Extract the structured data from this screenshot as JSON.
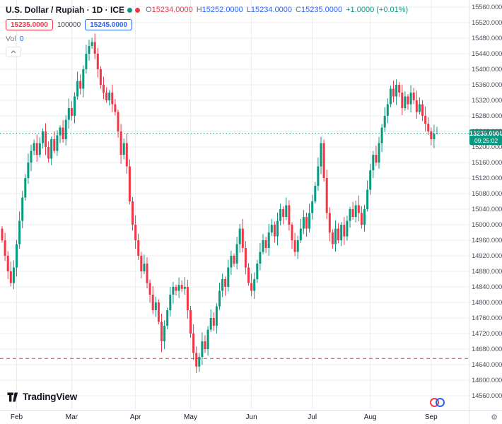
{
  "header": {
    "symbol_title": "U.S. Dollar / Rupiah · 1D · ICE",
    "ohlc": {
      "o_label": "O",
      "o_value": "15234.0000",
      "h_label": "H",
      "h_value": "15252.0000",
      "l_label": "L",
      "l_value": "15234.0000",
      "c_label": "C",
      "c_value": "15235.0000",
      "change": "+1.0000 (+0.01%)"
    },
    "order_buttons": {
      "sell_price": "15235.0000",
      "quantity": "100000",
      "buy_price": "15245.0000"
    },
    "volume": {
      "label": "Vol",
      "value": "0"
    }
  },
  "chart_data": {
    "type": "candlestick",
    "title": "U.S. Dollar / Rupiah",
    "symbol": "USD/IDR",
    "interval": "1D",
    "exchange": "ICE",
    "y_axis": {
      "min": 14560,
      "max": 15560,
      "step": 40,
      "decimals": 4
    },
    "x_axis": {
      "month_ticks": [
        {
          "label": "Feb",
          "index": 5
        },
        {
          "label": "Mar",
          "index": 24
        },
        {
          "label": "Apr",
          "index": 46
        },
        {
          "label": "May",
          "index": 65
        },
        {
          "label": "Jun",
          "index": 86
        },
        {
          "label": "Jul",
          "index": 107
        },
        {
          "label": "Aug",
          "index": 127
        },
        {
          "label": "Sep",
          "index": 148
        }
      ]
    },
    "first_open": 14990,
    "closes": [
      14960,
      14920,
      14880,
      14850,
      14890,
      14950,
      15010,
      15070,
      15120,
      15160,
      15190,
      15210,
      15180,
      15210,
      15240,
      15200,
      15170,
      15220,
      15190,
      15230,
      15250,
      15220,
      15270,
      15300,
      15280,
      15330,
      15370,
      15350,
      15400,
      15440,
      15460,
      15470,
      15440,
      15400,
      15360,
      15340,
      15320,
      15340,
      15310,
      15290,
      15240,
      15180,
      15210,
      15150,
      15060,
      15000,
      14960,
      14920,
      14880,
      14900,
      14850,
      14820,
      14780,
      14800,
      14750,
      14700,
      14740,
      14780,
      14820,
      14840,
      14830,
      14845,
      14835,
      14840,
      14780,
      14720,
      14670,
      14635,
      14660,
      14700,
      14680,
      14730,
      14760,
      14740,
      14790,
      14830,
      14860,
      14840,
      14890,
      14920,
      14900,
      14950,
      14990,
      14940,
      14890,
      14850,
      14830,
      14860,
      14900,
      14930,
      14960,
      14940,
      14980,
      15000,
      14970,
      15010,
      15040,
      15020,
      15050,
      15000,
      14960,
      14930,
      14960,
      14990,
      15020,
      14990,
      15030,
      15060,
      15100,
      15150,
      15210,
      15120,
      15030,
      14980,
      14950,
      14990,
      14960,
      15000,
      14970,
      15010,
      15040,
      15020,
      15050,
      15030,
      15000,
      15040,
      15090,
      15140,
      15180,
      15160,
      15210,
      15250,
      15280,
      15310,
      15350,
      15330,
      15360,
      15340,
      15300,
      15330,
      15310,
      15340,
      15320,
      15290,
      15310,
      15280,
      15260,
      15240,
      15220,
      15234,
      15235
    ],
    "wick_overrides": {
      "31": {
        "high": 15481
      },
      "55": {
        "low": 14672
      },
      "67": {
        "low": 14618
      },
      "150": {
        "high": 15252,
        "low": 15234
      }
    },
    "last_candle": {
      "open": 15234,
      "high": 15252,
      "low": 15234,
      "close": 15235,
      "change": 1.0,
      "change_pct": 0.01
    },
    "current_price": 15235,
    "price_lines": [
      {
        "value": 15235,
        "style": "dotted",
        "color": "#089981",
        "name": "current-price-line"
      },
      {
        "value": 14656,
        "style": "dashed",
        "color": "#F23645",
        "name": "alert-line"
      }
    ],
    "colors": {
      "up": "#089981",
      "down": "#F23645",
      "grid": "#E9EDF3"
    }
  },
  "price_scale": {
    "current_badge": {
      "price": "15235.0000",
      "countdown": "09:25:02",
      "bg": "#089981"
    }
  },
  "footer": {
    "logo_text": "TradingView"
  }
}
